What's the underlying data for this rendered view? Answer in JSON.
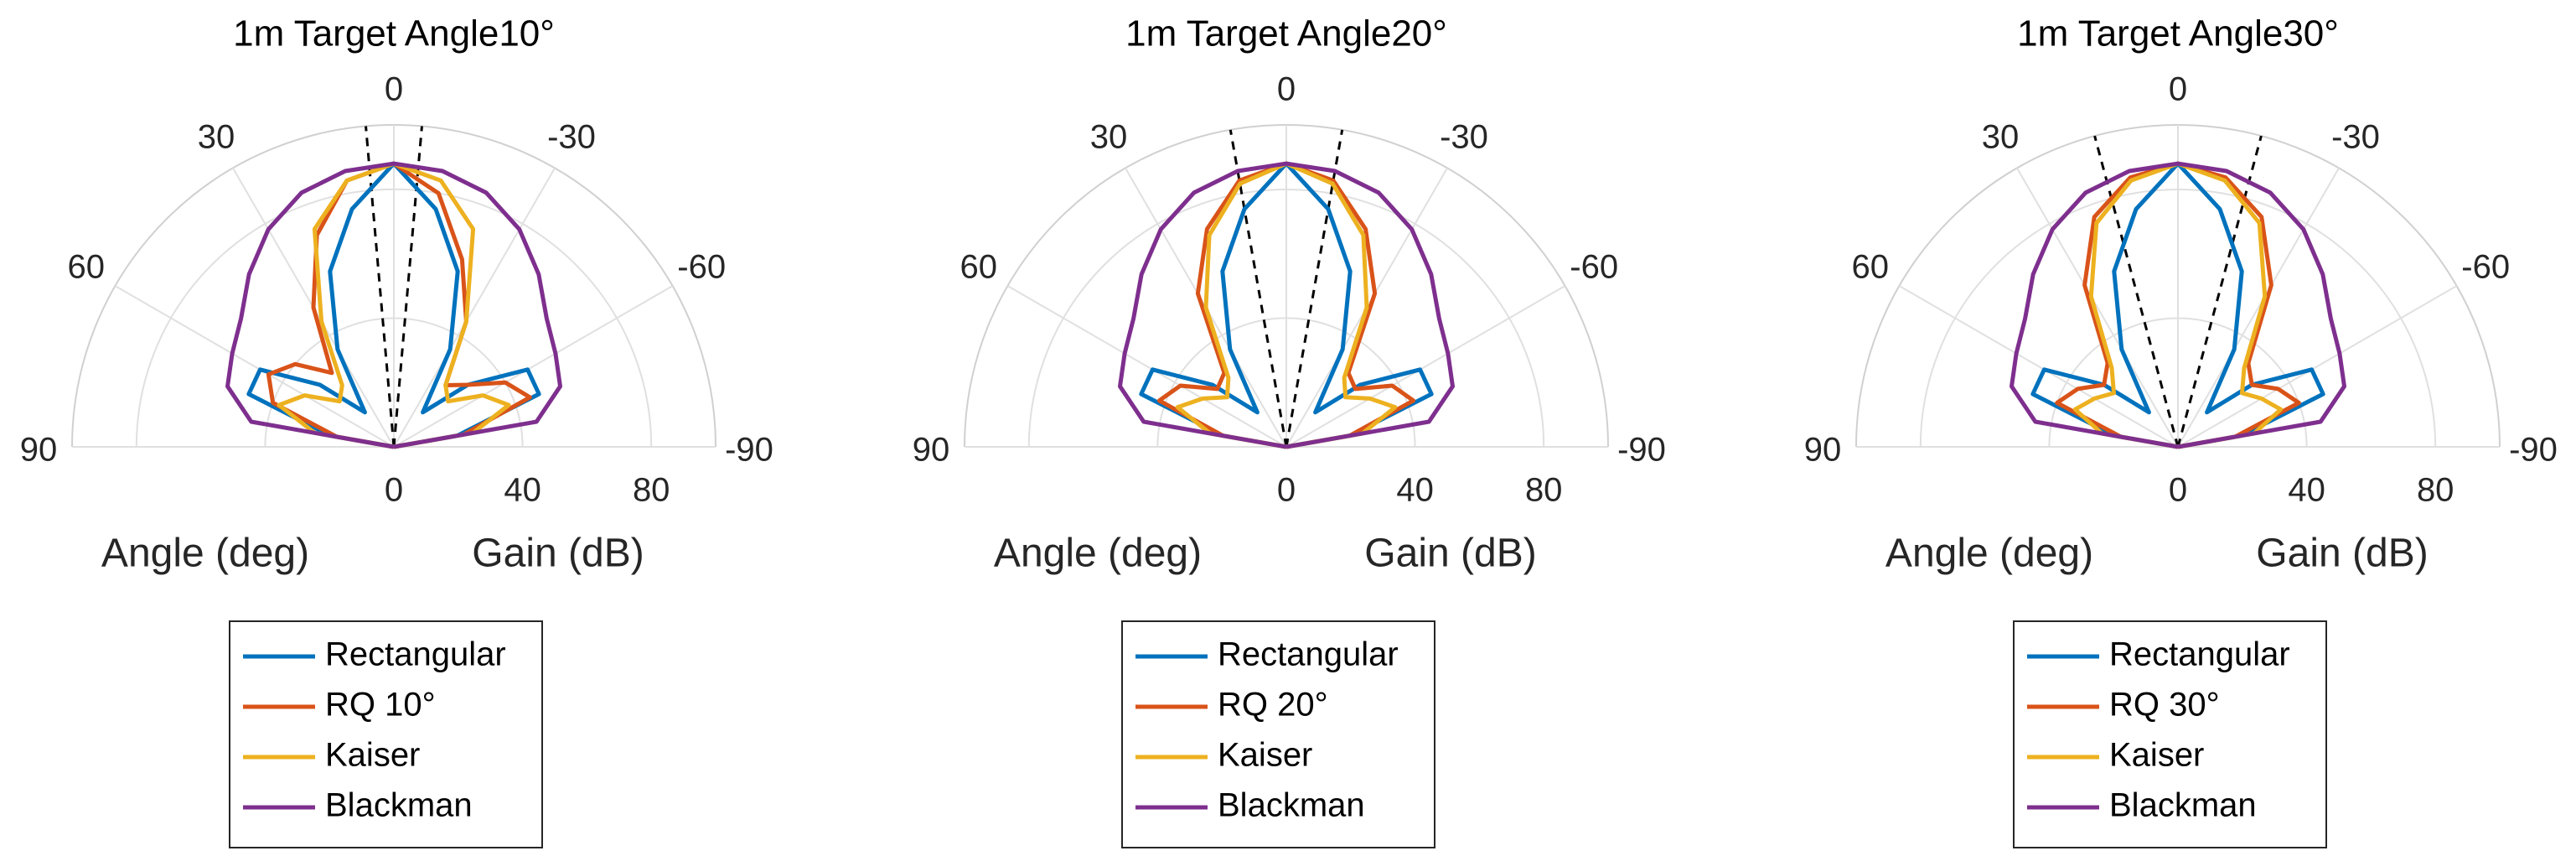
{
  "chart_data": [
    {
      "type": "polar",
      "title": "1m Target Angle10°",
      "theta_label": "Angle (deg)",
      "r_label": "Gain (dB)",
      "theta": [
        -90,
        -80,
        -70,
        -60,
        -50,
        -40,
        -30,
        -20,
        -10,
        0,
        10,
        20,
        30,
        40,
        50,
        60,
        70,
        80,
        90
      ],
      "thetaticks": [
        -90,
        -60,
        -30,
        0,
        30,
        60,
        90
      ],
      "rlim": [
        0,
        100
      ],
      "rticks": [
        0,
        40,
        80
      ],
      "reference_angles": [
        5,
        -5
      ],
      "grid": true,
      "legend": "south",
      "series": [
        {
          "name": "Rectangular",
          "color": "#0072BD",
          "values": [
            0,
            20,
            48,
            48,
            30,
            14,
            35,
            58,
            75,
            88,
            75,
            58,
            35,
            14,
            30,
            48,
            48,
            20,
            0
          ]
        },
        {
          "name": "RQ 10°",
          "color": "#D95319",
          "values": [
            0,
            22,
            45,
            40,
            30,
            25,
            45,
            62,
            80,
            88,
            84,
            70,
            50,
            30,
            40,
            45,
            40,
            18,
            0
          ]
        },
        {
          "name": "Kaiser",
          "color": "#EDB120",
          "values": [
            0,
            25,
            38,
            32,
            22,
            25,
            45,
            72,
            84,
            88,
            84,
            72,
            45,
            25,
            22,
            32,
            38,
            25,
            0
          ]
        },
        {
          "name": "Blackman",
          "color": "#7E2F8E",
          "values": [
            0,
            45,
            55,
            58,
            62,
            70,
            78,
            84,
            87,
            88,
            87,
            84,
            78,
            70,
            62,
            58,
            55,
            45,
            0
          ]
        }
      ]
    },
    {
      "type": "polar",
      "title": "1m Target Angle20°",
      "theta_label": "Angle (deg)",
      "r_label": "Gain (dB)",
      "theta": [
        -90,
        -80,
        -70,
        -60,
        -50,
        -40,
        -30,
        -20,
        -10,
        0,
        10,
        20,
        30,
        40,
        50,
        60,
        70,
        80,
        90
      ],
      "thetaticks": [
        -90,
        -60,
        -30,
        0,
        30,
        60,
        90
      ],
      "rlim": [
        0,
        100
      ],
      "rticks": [
        0,
        40,
        80
      ],
      "reference_angles": [
        10,
        -10
      ],
      "grid": true,
      "legend": "south",
      "series": [
        {
          "name": "Rectangular",
          "color": "#0072BD",
          "values": [
            0,
            20,
            48,
            48,
            30,
            14,
            35,
            58,
            75,
            88,
            75,
            58,
            35,
            14,
            30,
            48,
            48,
            20,
            0
          ]
        },
        {
          "name": "RQ 20°",
          "color": "#D95319",
          "values": [
            0,
            20,
            42,
            38,
            28,
            30,
            55,
            72,
            84,
            88,
            84,
            72,
            55,
            30,
            28,
            38,
            42,
            20,
            0
          ]
        },
        {
          "name": "Kaiser",
          "color": "#EDB120",
          "values": [
            0,
            24,
            36,
            30,
            24,
            28,
            50,
            70,
            83,
            88,
            83,
            70,
            50,
            28,
            24,
            30,
            36,
            24,
            0
          ]
        },
        {
          "name": "Blackman",
          "color": "#7E2F8E",
          "values": [
            0,
            45,
            55,
            58,
            62,
            70,
            78,
            84,
            87,
            88,
            87,
            84,
            78,
            70,
            62,
            58,
            55,
            45,
            0
          ]
        }
      ]
    },
    {
      "type": "polar",
      "title": "1m Target Angle30°",
      "theta_label": "Angle (deg)",
      "r_label": "Gain (dB)",
      "theta": [
        -90,
        -80,
        -70,
        -60,
        -50,
        -40,
        -30,
        -20,
        -10,
        0,
        10,
        20,
        30,
        40,
        50,
        60,
        70,
        80,
        90
      ],
      "thetaticks": [
        -90,
        -60,
        -30,
        0,
        30,
        60,
        90
      ],
      "rlim": [
        0,
        100
      ],
      "rticks": [
        0,
        40,
        80
      ],
      "reference_angles": [
        15,
        -15
      ],
      "grid": true,
      "legend": "south",
      "series": [
        {
          "name": "Rectangular",
          "color": "#0072BD",
          "values": [
            0,
            20,
            48,
            48,
            30,
            14,
            35,
            58,
            75,
            88,
            75,
            58,
            35,
            14,
            30,
            48,
            48,
            20,
            0
          ]
        },
        {
          "name": "RQ 30°",
          "color": "#D95319",
          "values": [
            0,
            18,
            40,
            36,
            30,
            34,
            58,
            76,
            85,
            88,
            85,
            76,
            58,
            34,
            30,
            36,
            40,
            18,
            0
          ]
        },
        {
          "name": "Kaiser",
          "color": "#EDB120",
          "values": [
            0,
            24,
            34,
            30,
            26,
            32,
            54,
            74,
            84,
            88,
            84,
            74,
            54,
            32,
            26,
            30,
            34,
            24,
            0
          ]
        },
        {
          "name": "Blackman",
          "color": "#7E2F8E",
          "values": [
            0,
            45,
            55,
            58,
            62,
            70,
            78,
            84,
            87,
            88,
            87,
            84,
            78,
            70,
            62,
            58,
            55,
            45,
            0
          ]
        }
      ]
    }
  ]
}
